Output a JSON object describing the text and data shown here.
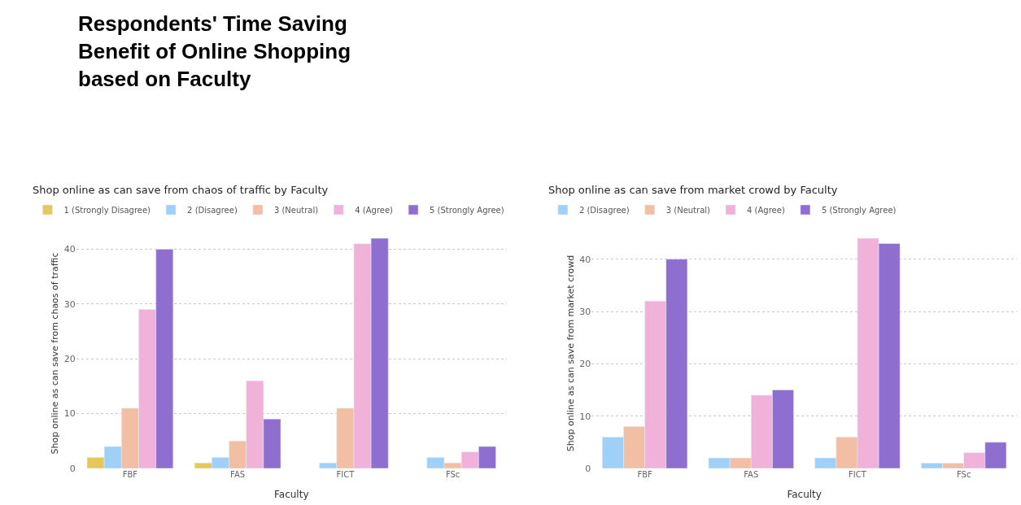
{
  "chart_data": [
    {
      "type": "bar",
      "title": "Respondents' Time Saving Benefit of Online Shopping based on Faculty",
      "subtitle": "Shop online as can save from chaos of traffic by Faculty",
      "xlabel": "Faculty",
      "ylabel": "Shop online as can save from chaos of traffic",
      "categories": [
        "FBF",
        "FAS",
        "FICT",
        "FSc"
      ],
      "series": [
        {
          "name": "1 (Strongly Disagree)",
          "color": "#e6c85a",
          "values": [
            2,
            1,
            null,
            null
          ]
        },
        {
          "name": "2 (Disagree)",
          "color": "#9fd0f7",
          "values": [
            4,
            2,
            1,
            2
          ]
        },
        {
          "name": "3 (Neutral)",
          "color": "#f2bfa4",
          "values": [
            11,
            5,
            11,
            1
          ]
        },
        {
          "name": "4 (Agree)",
          "color": "#f0b2d9",
          "values": [
            29,
            16,
            41,
            3
          ]
        },
        {
          "name": "5 (Strongly Agree)",
          "color": "#8e6fcf",
          "values": [
            40,
            9,
            42,
            4
          ]
        }
      ],
      "ylim": [
        0,
        42
      ],
      "yticks": [
        0,
        10,
        20,
        30,
        40
      ],
      "grid": "y",
      "legend": "top left"
    },
    {
      "type": "bar",
      "subtitle": "Shop online as can save from market crowd by Faculty",
      "xlabel": "Faculty",
      "ylabel": "Shop online as can save from market crowd",
      "categories": [
        "FBF",
        "FAS",
        "FICT",
        "FSc"
      ],
      "series": [
        {
          "name": "2 (Disagree)",
          "color": "#9fd0f7",
          "values": [
            6,
            2,
            2,
            1
          ]
        },
        {
          "name": "3 (Neutral)",
          "color": "#f2bfa4",
          "values": [
            8,
            2,
            6,
            1
          ]
        },
        {
          "name": "4 (Agree)",
          "color": "#f0b2d9",
          "values": [
            32,
            14,
            44,
            3
          ]
        },
        {
          "name": "5 (Strongly Agree)",
          "color": "#8e6fcf",
          "values": [
            40,
            15,
            43,
            5
          ]
        }
      ],
      "ylim": [
        0,
        44
      ],
      "yticks": [
        0,
        10,
        20,
        30,
        40
      ],
      "grid": "y",
      "legend": "top left"
    }
  ]
}
